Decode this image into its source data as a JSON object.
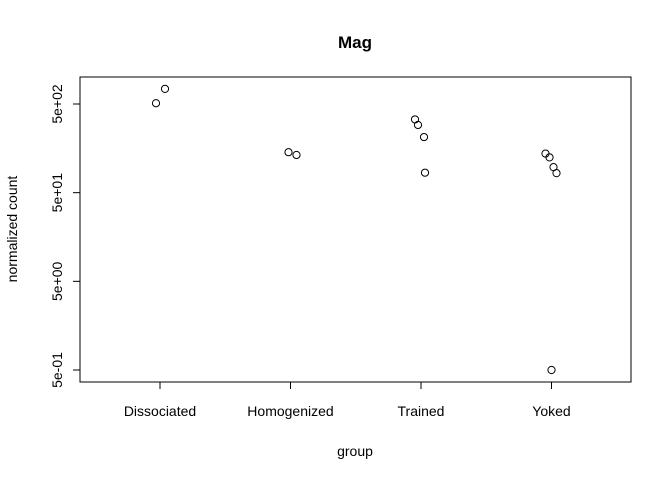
{
  "chart_data": {
    "type": "scatter",
    "title": "Mag",
    "xlabel": "group",
    "ylabel": "normalized count",
    "y_scale": "log",
    "categories": [
      "Dissociated",
      "Homogenized",
      "Trained",
      "Yoked"
    ],
    "yticks": [
      "5e-01",
      "5e+00",
      "5e+01",
      "5e+02"
    ],
    "ylim": [
      0.4,
      800
    ],
    "grid": false,
    "points": [
      {
        "group": "Dissociated",
        "y": 510
      },
      {
        "group": "Dissociated",
        "y": 740
      },
      {
        "group": "Homogenized",
        "y": 143
      },
      {
        "group": "Homogenized",
        "y": 133
      },
      {
        "group": "Trained",
        "y": 335
      },
      {
        "group": "Trained",
        "y": 290
      },
      {
        "group": "Trained",
        "y": 212
      },
      {
        "group": "Trained",
        "y": 84
      },
      {
        "group": "Yoked",
        "y": 138
      },
      {
        "group": "Yoked",
        "y": 125
      },
      {
        "group": "Yoked",
        "y": 97
      },
      {
        "group": "Yoked",
        "y": 83
      },
      {
        "group": "Yoked",
        "y": 0.5
      }
    ]
  }
}
